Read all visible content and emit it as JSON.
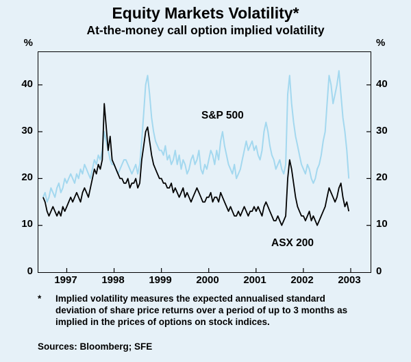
{
  "header": {
    "title": "Equity Markets Volatility*",
    "subtitle": "At-the-money call option implied volatility"
  },
  "axes": {
    "y_unit_left": "%",
    "y_unit_right": "%"
  },
  "annotations": {
    "sp500": "S&P 500",
    "asx200": "ASX 200"
  },
  "footnote": {
    "marker": "*",
    "text": "Implied volatility measures the expected annualised standard deviation of share price returns over a period of up to 3 months as implied in the prices of options on stock indices.",
    "sources": "Sources: Bloomberg; SFE"
  },
  "colors": {
    "background": "#e6f1f8",
    "frame": "#000000",
    "sp500_line": "#a3d8ef",
    "asx200_line": "#000000"
  },
  "chart_data": {
    "type": "line",
    "title": "Equity Markets Volatility",
    "subtitle": "At-the-money call option implied volatility",
    "ylabel": "%",
    "ylim": [
      0,
      47
    ],
    "xlim": [
      1996.4,
      2003.42
    ],
    "x_start": 1996.5,
    "x_end": 2002.96,
    "yticks": [
      0,
      10,
      20,
      30,
      40
    ],
    "xticks": [
      1997,
      1998,
      1999,
      2000,
      2001,
      2002,
      2003
    ],
    "grid": false,
    "legend_position": "inline-annotations",
    "series": [
      {
        "id": "sp500",
        "name": "S&P 500",
        "color": "#a3d8ef",
        "width": 2,
        "values": [
          16,
          17,
          15,
          16,
          18,
          17,
          16,
          18,
          19,
          17,
          18,
          20,
          19,
          20,
          21,
          20,
          19,
          21,
          20,
          22,
          21,
          23,
          22,
          21,
          20,
          22,
          24,
          23,
          25,
          24,
          26,
          30,
          28,
          26,
          24,
          23,
          23,
          22,
          21,
          22,
          23,
          24,
          24,
          23,
          22,
          21,
          22,
          23,
          21,
          23,
          28,
          34,
          40,
          42,
          38,
          33,
          30,
          28,
          27,
          26,
          26,
          25,
          27,
          24,
          25,
          23,
          24,
          26,
          23,
          25,
          22,
          24,
          23,
          21,
          22,
          24,
          25,
          23,
          24,
          26,
          22,
          21,
          23,
          22,
          24,
          26,
          25,
          23,
          26,
          24,
          28,
          30,
          27,
          25,
          23,
          22,
          21,
          23,
          20,
          21,
          22,
          24,
          26,
          28,
          26,
          27,
          28,
          26,
          27,
          25,
          24,
          26,
          30,
          32,
          30,
          27,
          25,
          24,
          22,
          23,
          24,
          22,
          21,
          23,
          38,
          42,
          36,
          32,
          29,
          27,
          25,
          23,
          22,
          21,
          23,
          22,
          20,
          19,
          20,
          22,
          23,
          25,
          28,
          30,
          36,
          42,
          40,
          36,
          38,
          40,
          43,
          38,
          33,
          30,
          26,
          20
        ]
      },
      {
        "id": "asx200",
        "name": "ASX 200",
        "color": "#000000",
        "width": 1.8,
        "values": [
          16,
          15,
          13,
          12,
          13,
          14,
          13,
          12,
          13,
          12,
          14,
          13,
          14,
          15,
          16,
          15,
          16,
          17,
          16,
          15,
          17,
          18,
          17,
          16,
          18,
          20,
          22,
          21,
          23,
          22,
          24,
          36,
          31,
          26,
          29,
          24,
          23,
          22,
          21,
          20,
          20,
          19,
          19,
          20,
          18,
          19,
          19,
          20,
          18,
          19,
          24,
          27,
          30,
          31,
          28,
          25,
          23,
          22,
          21,
          20,
          20,
          19,
          19,
          18,
          18,
          19,
          17,
          18,
          17,
          16,
          17,
          18,
          16,
          17,
          16,
          15,
          16,
          17,
          18,
          17,
          16,
          15,
          15,
          16,
          16,
          17,
          15,
          16,
          16,
          15,
          17,
          16,
          15,
          14,
          13,
          14,
          13,
          12,
          12,
          13,
          12,
          13,
          14,
          13,
          12,
          13,
          13,
          14,
          13,
          14,
          13,
          12,
          14,
          15,
          14,
          13,
          12,
          11,
          11,
          12,
          11,
          10,
          11,
          12,
          20,
          24,
          22,
          19,
          16,
          14,
          13,
          12,
          12,
          11,
          12,
          13,
          11,
          12,
          11,
          10,
          11,
          12,
          13,
          14,
          16,
          18,
          17,
          16,
          15,
          16,
          18,
          19,
          16,
          14,
          15,
          13
        ]
      }
    ]
  }
}
